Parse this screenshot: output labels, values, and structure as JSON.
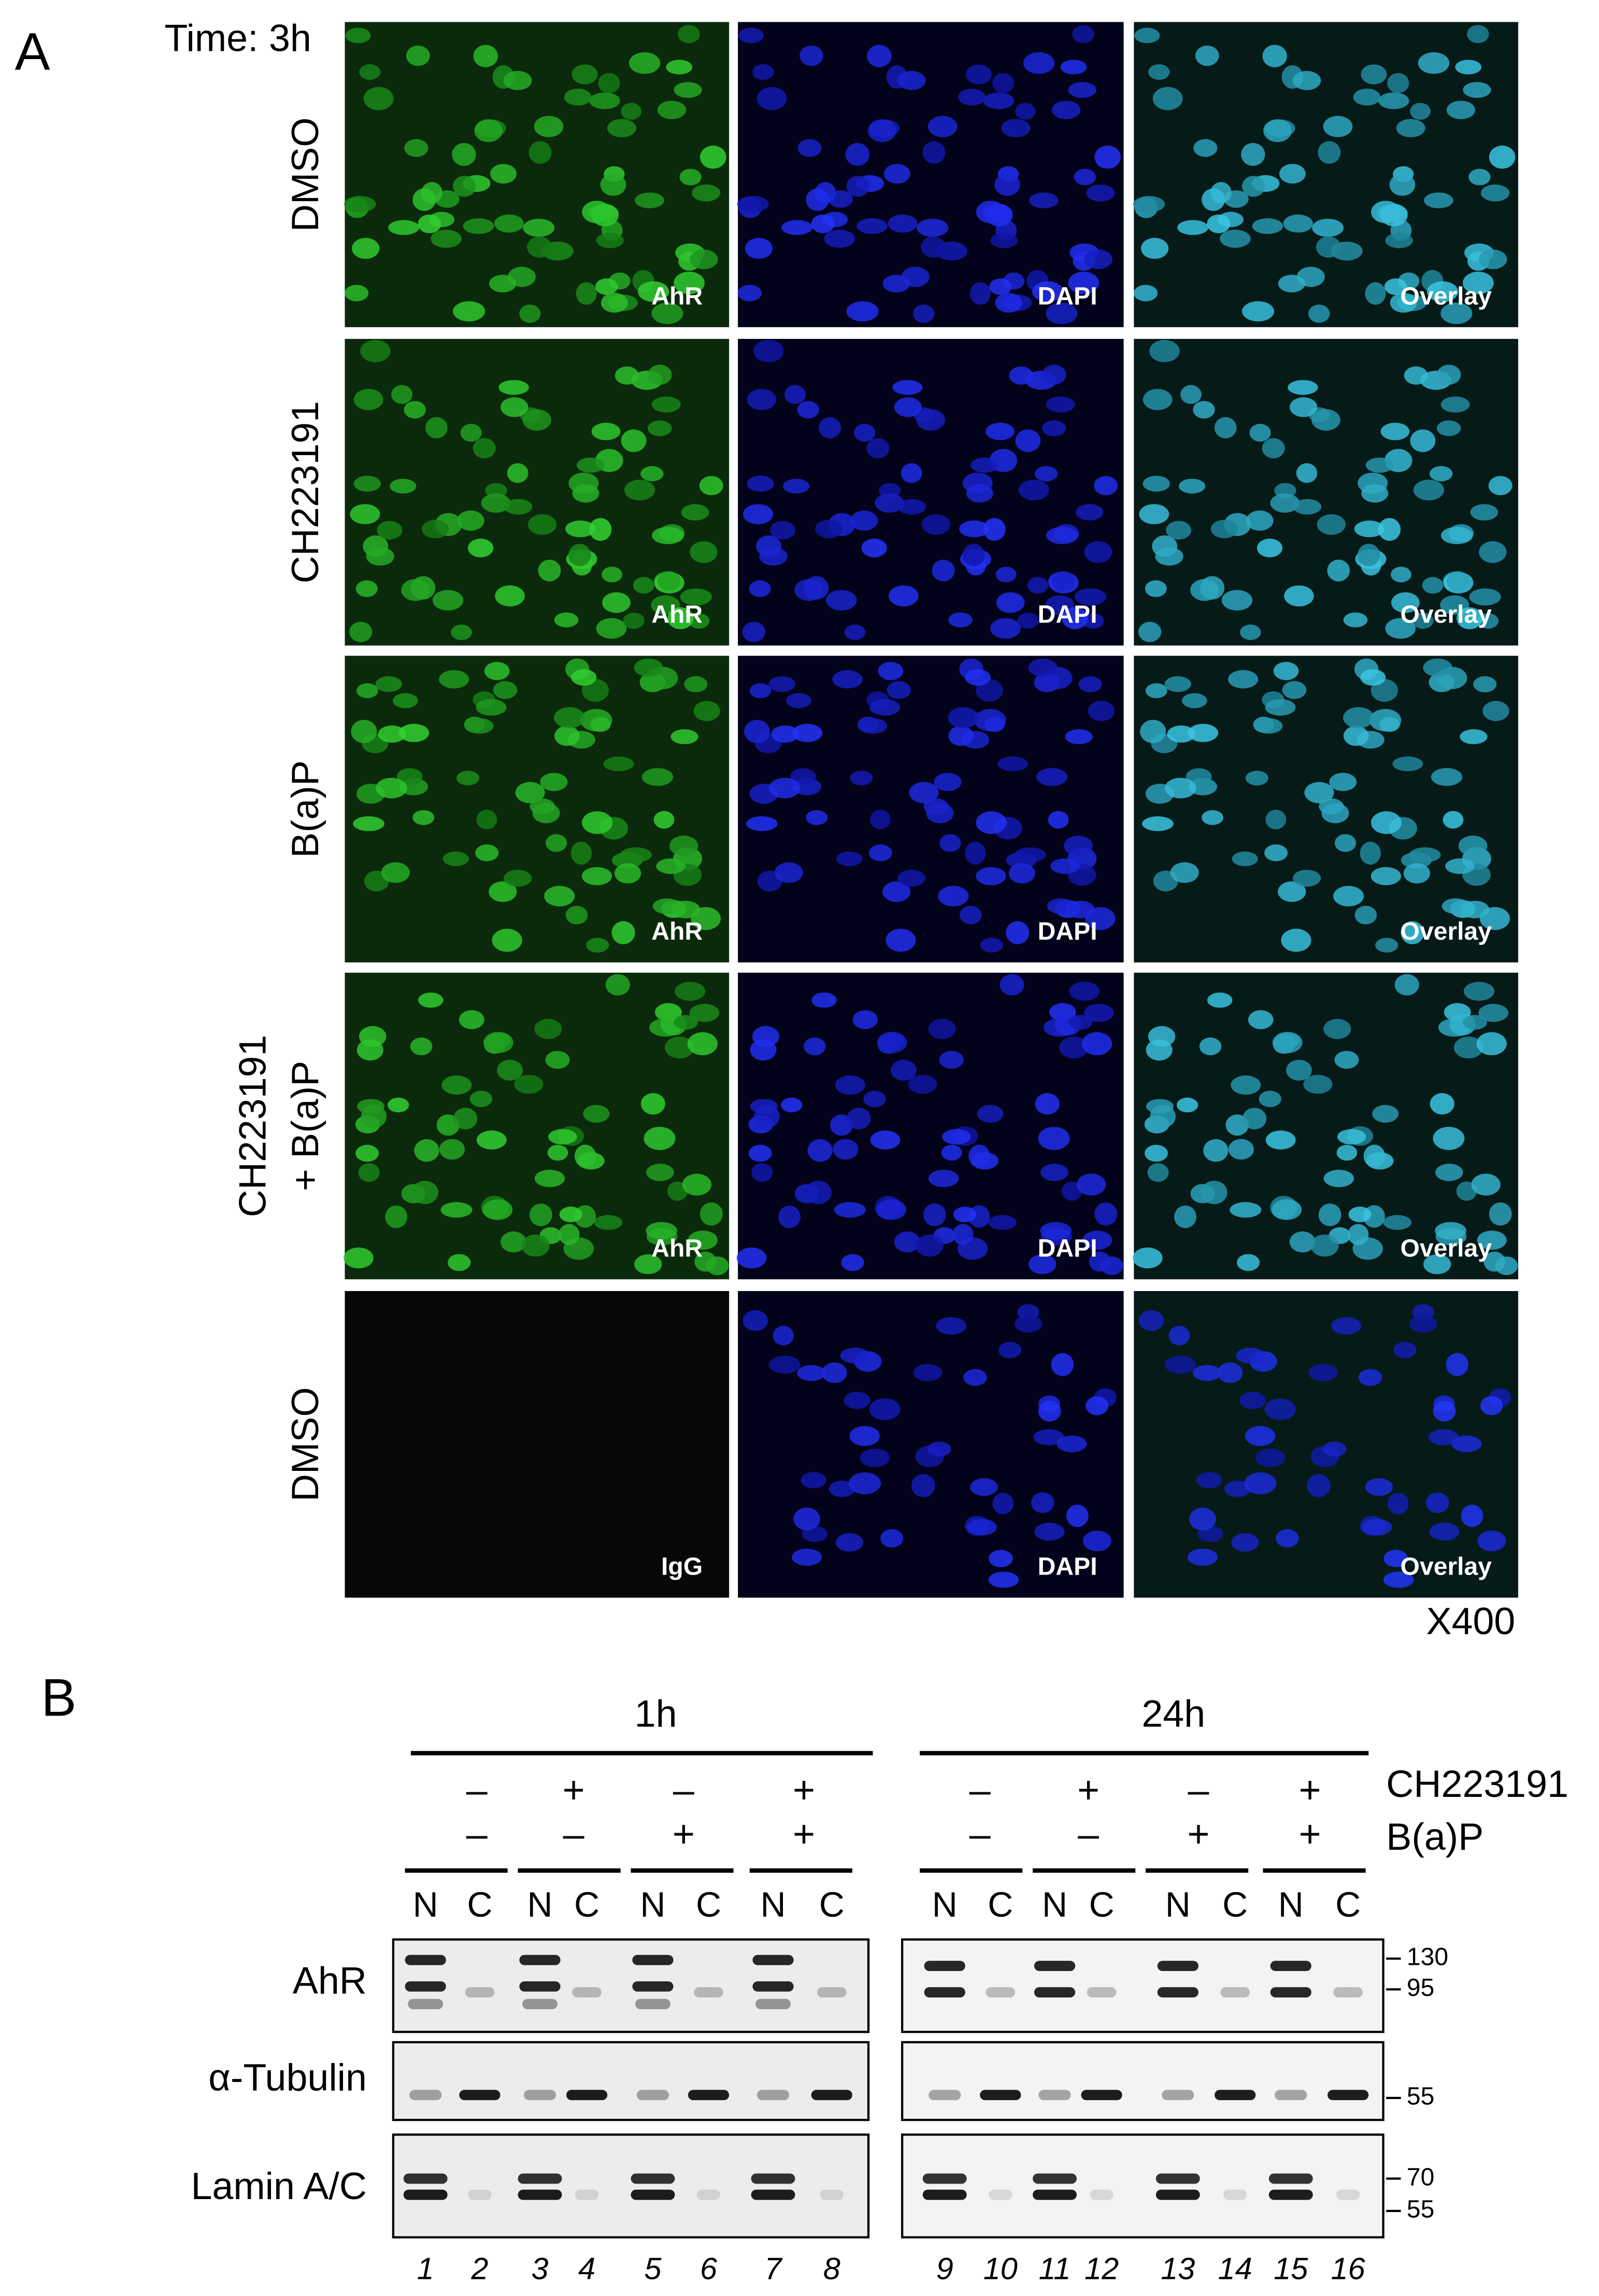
{
  "panel_a": {
    "label": "A",
    "time": "Time: 3h",
    "rows": [
      {
        "label": [
          "DMSO"
        ],
        "panels": [
          "AhR",
          "DAPI",
          "Overlay"
        ]
      },
      {
        "label": [
          "CH223191"
        ],
        "panels": [
          "AhR",
          "DAPI",
          "Overlay"
        ]
      },
      {
        "label": [
          "B(a)P"
        ],
        "panels": [
          "AhR",
          "DAPI",
          "Overlay"
        ]
      },
      {
        "label": [
          "CH223191",
          "+ B(a)P"
        ],
        "panels": [
          "AhR",
          "DAPI",
          "Overlay"
        ]
      },
      {
        "label": [
          "DMSO"
        ],
        "panels": [
          "IgG",
          "DAPI",
          "Overlay"
        ]
      }
    ],
    "magnification": "X400"
  },
  "panel_b": {
    "label": "B",
    "groups": [
      "1h",
      "24h"
    ],
    "treatments": [
      {
        "name": "CH223191",
        "signs": [
          "–",
          "+",
          "–",
          "+"
        ]
      },
      {
        "name": "B(a)P",
        "signs": [
          "–",
          "–",
          "+",
          "+"
        ]
      }
    ],
    "fractions": [
      "N",
      "C"
    ],
    "blots": [
      {
        "name": "AhR",
        "markers": [
          "130",
          "95"
        ]
      },
      {
        "name": "α-Tubulin",
        "markers": [
          "55"
        ]
      },
      {
        "name": "Lamin A/C",
        "markers": [
          "70",
          "55"
        ]
      }
    ],
    "lanes": [
      "1",
      "2",
      "3",
      "4",
      "5",
      "6",
      "7",
      "8",
      "9",
      "10",
      "11",
      "12",
      "13",
      "14",
      "15",
      "16"
    ]
  }
}
